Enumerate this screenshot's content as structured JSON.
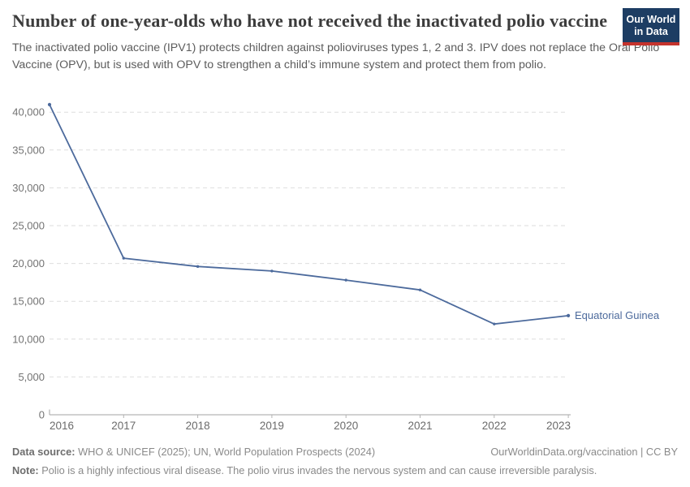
{
  "header": {
    "title": "Number of one-year-olds who have not received the inactivated polio vaccine",
    "subtitle": "The inactivated polio vaccine (IPV1) protects children against polioviruses types 1, 2 and 3. IPV does not replace the Oral Polio Vaccine (OPV), but is used with OPV to strengthen a child’s immune system and protect them from polio.",
    "logo": {
      "line1": "Our World",
      "line2": "in Data",
      "bg_color": "#1d3d63",
      "accent_color": "#c5332d"
    }
  },
  "chart_data": {
    "type": "line",
    "title": "Number of one-year-olds who have not received the inactivated polio vaccine",
    "x": [
      2016,
      2017,
      2018,
      2019,
      2020,
      2021,
      2022,
      2023
    ],
    "series": [
      {
        "name": "Equatorial Guinea",
        "color": "#4c6a9c",
        "values": [
          41000,
          20700,
          19600,
          19000,
          17800,
          16500,
          12000,
          13100
        ]
      }
    ],
    "xlabel": "",
    "ylabel": "",
    "ylim": [
      0,
      41000
    ],
    "yticks": [
      0,
      5000,
      10000,
      15000,
      20000,
      25000,
      30000,
      35000,
      40000
    ],
    "ytick_labels": [
      "0",
      "5,000",
      "10,000",
      "15,000",
      "20,000",
      "25,000",
      "30,000",
      "35,000",
      "40,000"
    ],
    "grid": "horizontal-dashed",
    "legend_position": "line-end-label",
    "colors": {
      "gridline": "#dedede",
      "axis": "#a3a3a3",
      "ytick_text": "#737373",
      "xtick_text": "#6b6b6b"
    }
  },
  "footer": {
    "data_source_label": "Data source:",
    "data_source": " WHO & UNICEF (2025); UN, World Population Prospects (2024)",
    "link": "OurWorldinData.org/vaccination | CC BY",
    "note_label": "Note:",
    "note": " Polio is a highly infectious viral disease. The polio virus invades the nervous system and can cause irreversible paralysis."
  }
}
